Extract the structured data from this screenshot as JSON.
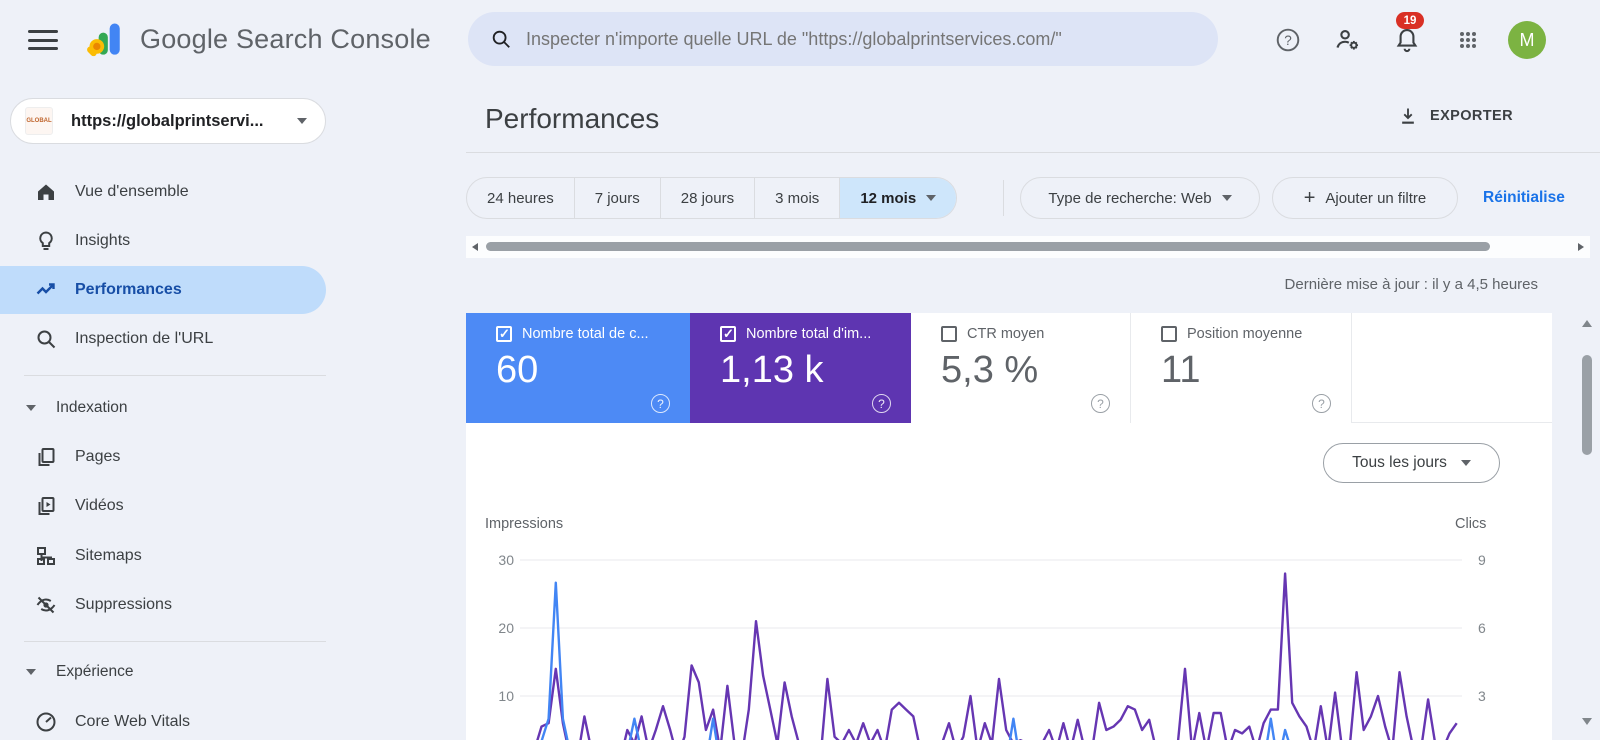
{
  "topbar": {
    "product_name": "Google Search Console",
    "search_placeholder": "Inspecter n'importe quelle URL de \"https://globalprintservices.com/\"",
    "notification_count": "19",
    "avatar_letter": "M"
  },
  "sidebar": {
    "property_name": "https://globalprintservi...",
    "property_favicon_text": "GLOBAL",
    "items": [
      {
        "label": "Vue d'ensemble"
      },
      {
        "label": "Insights"
      },
      {
        "label": "Performances"
      },
      {
        "label": "Inspection de l'URL"
      }
    ],
    "section_indexation": {
      "label": "Indexation",
      "items": [
        {
          "label": "Pages"
        },
        {
          "label": "Vidéos"
        },
        {
          "label": "Sitemaps"
        },
        {
          "label": "Suppressions"
        }
      ]
    },
    "section_experience": {
      "label": "Expérience",
      "items": [
        {
          "label": "Core Web Vitals"
        }
      ]
    }
  },
  "main": {
    "title": "Performances",
    "export_label": "EXPORTER",
    "date_ranges": [
      "24 heures",
      "7 jours",
      "28 jours",
      "3 mois",
      "12 mois"
    ],
    "selected_range": "12 mois",
    "filters": {
      "search_type": "Type de recherche: Web",
      "add_filter_plus": "+",
      "add_filter": "Ajouter un filtre",
      "reset": "Réinitialise"
    },
    "last_update": "Dernière mise à jour : il y a 4,5 heures",
    "cards": [
      {
        "label": "Nombre total de c...",
        "value": "60",
        "checked": true,
        "color": "#4d8af5"
      },
      {
        "label": "Nombre total d'im...",
        "value": "1,13 k",
        "checked": true,
        "color": "#5e35b1"
      },
      {
        "label": "CTR moyen",
        "value": "5,3 %",
        "checked": false
      },
      {
        "label": "Position moyenne",
        "value": "11",
        "checked": false
      }
    ],
    "granularity": "Tous les jours"
  },
  "chart_data": {
    "type": "line",
    "left_axis": {
      "label": "Impressions",
      "ticks": [
        "30",
        "20",
        "10"
      ],
      "max": 30
    },
    "right_axis": {
      "label": "Clics",
      "ticks": [
        "9",
        "6",
        "3"
      ],
      "max": 9
    },
    "grid": true,
    "series": [
      {
        "name": "Impressions",
        "color": "#6636b2",
        "scale_max": 30,
        "values": [
          1,
          1.5,
          2,
          5.5,
          6,
          14,
          6,
          1,
          0.5,
          7,
          2,
          0.5,
          0.5,
          0.5,
          0.5,
          5,
          3,
          7,
          2,
          5,
          8.5,
          5,
          1,
          4,
          14.5,
          12,
          5,
          8,
          2,
          11.5,
          3,
          1,
          8,
          21,
          13,
          8,
          3,
          12,
          7,
          3,
          2.5,
          0.5,
          0.5,
          12.5,
          4,
          3,
          5,
          3,
          6,
          3,
          5,
          2,
          8,
          9,
          8,
          7,
          2,
          0.5,
          0.5,
          3,
          6,
          2,
          4,
          10,
          2,
          6,
          3,
          12.5,
          5,
          3,
          3.5,
          3,
          2.5,
          3,
          5,
          2,
          6,
          2,
          6.5,
          2,
          2,
          9,
          5,
          5.5,
          6.5,
          8.5,
          8,
          5,
          6.5,
          2,
          2,
          3,
          3,
          14,
          2,
          7.5,
          2,
          7.5,
          7.5,
          2,
          5,
          4.5,
          5.5,
          2,
          6,
          8,
          8,
          28,
          9,
          7,
          5.5,
          2,
          8.5,
          2,
          10.5,
          2,
          2,
          13.5,
          5,
          7,
          10,
          5.5,
          2,
          13.5,
          7,
          2,
          2,
          9.5,
          3,
          2,
          4.5,
          6
        ]
      },
      {
        "name": "Clics",
        "color": "#4285f4",
        "scale_max": 9,
        "values": [
          0,
          0,
          0.5,
          1,
          2,
          8,
          2,
          0.5,
          0,
          0.5,
          0,
          0,
          0,
          0,
          0,
          0.5,
          2,
          0.5,
          0,
          0,
          0.5,
          0,
          0,
          0,
          1,
          0.5,
          0,
          2,
          0,
          0.5,
          0,
          0,
          0,
          1,
          0.5,
          0,
          0,
          0.5,
          0,
          0,
          0,
          0,
          0,
          0.5,
          0,
          0,
          0,
          0,
          0.5,
          0,
          0,
          0,
          1,
          0.5,
          0,
          0,
          0,
          0,
          0,
          0,
          0.5,
          0,
          0,
          0.5,
          0,
          0.5,
          0,
          1,
          0,
          2,
          0,
          0,
          0,
          0,
          0,
          0,
          0.5,
          0,
          0.5,
          0,
          0,
          0.5,
          0,
          0,
          0,
          0.5,
          0,
          0,
          0.5,
          0,
          0,
          0,
          0,
          1,
          0,
          0.5,
          0,
          0,
          0.5,
          0,
          0,
          0,
          0,
          0,
          0,
          2,
          0,
          1.5,
          0.5,
          0,
          0,
          0,
          0.5,
          0,
          0.5,
          0,
          0,
          0.5,
          0,
          0,
          0.5,
          0,
          0,
          1,
          0.5,
          0,
          0,
          0.5,
          0,
          0,
          0,
          1
        ]
      }
    ]
  }
}
